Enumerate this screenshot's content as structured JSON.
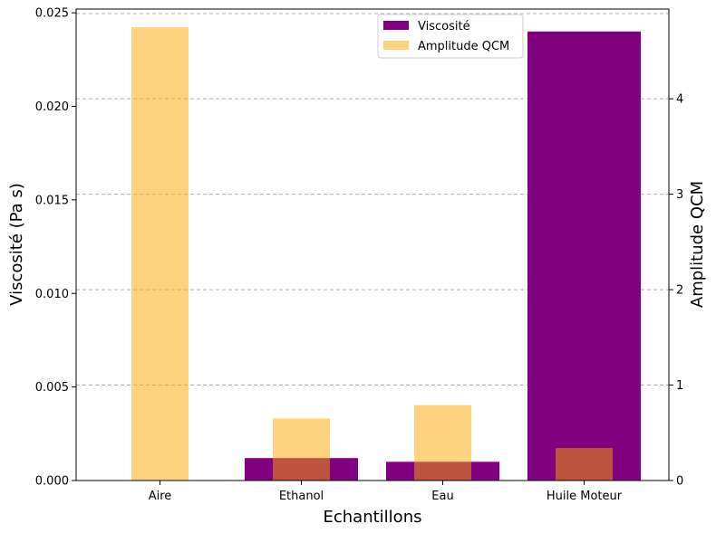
{
  "chart_data": {
    "type": "bar",
    "categories": [
      "Aire",
      "Ethanol",
      "Eau",
      "Huile Moteur"
    ],
    "xlabel": "Echantillons",
    "ylabel_left": "Viscosité (Pa s)",
    "ylabel_right": "Amplitude QCM",
    "ylim_left": [
      0,
      0.0252
    ],
    "ylim_right": [
      0,
      4.94
    ],
    "yticks_left": [
      "0.000",
      "0.005",
      "0.010",
      "0.015",
      "0.020",
      "0.025"
    ],
    "yticks_left_values": [
      0,
      0.005,
      0.01,
      0.015,
      0.02,
      0.025
    ],
    "yticks_right": [
      "0",
      "1",
      "2",
      "3",
      "4"
    ],
    "yticks_right_values": [
      0,
      1,
      2,
      3,
      4
    ],
    "grid": "horizontal dashed (right axis ticks)",
    "legend_position": "top-right",
    "series": [
      {
        "name": "Viscosité",
        "axis": "left",
        "color": "#800080",
        "values": [
          1.81e-05,
          0.0012,
          0.001,
          0.024
        ]
      },
      {
        "name": "Amplitude QCM",
        "axis": "right",
        "color": "#FFA500",
        "opacity": 0.5,
        "values": [
          4.75,
          0.65,
          0.79,
          0.34
        ]
      }
    ]
  }
}
